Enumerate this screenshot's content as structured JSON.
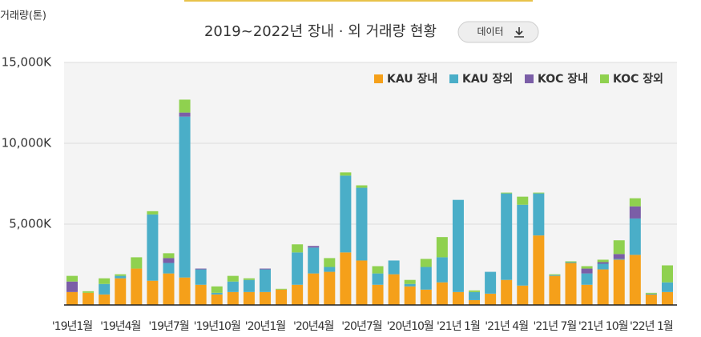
{
  "chart_data": {
    "type": "stacked_bar",
    "title": "2019~2022년 장내 · 외 거래량 현황",
    "y_label": "거래량(톤)",
    "button": "데이터",
    "legend": "top-right",
    "grid": true,
    "ylim": [
      0,
      15000
    ],
    "yticks": [
      {
        "value": 5000,
        "label": "5,000K"
      },
      {
        "value": 10000,
        "label": "10,000K"
      },
      {
        "value": 15000,
        "label": "15,000K"
      }
    ],
    "categories": [
      "'19년1월",
      null,
      null,
      "'19년4월",
      null,
      null,
      "'19년7월",
      null,
      null,
      "'19년10월",
      null,
      null,
      "'20년1월",
      null,
      null,
      "'20년4월",
      null,
      null,
      "'20년7월",
      null,
      null,
      "'20년10월",
      null,
      null,
      "'21년 1월",
      null,
      null,
      "'21년 4월",
      null,
      null,
      "'21년 7월",
      null,
      null,
      "'21년 10월",
      null,
      null,
      "'22년 1월",
      null
    ],
    "series": [
      {
        "name": "KAU 장내",
        "color": "#f5a01a",
        "values": [
          800,
          750,
          650,
          1650,
          2250,
          1500,
          1950,
          1700,
          1250,
          650,
          800,
          800,
          800,
          950,
          1250,
          1950,
          2050,
          3250,
          2750,
          1250,
          1900,
          1150,
          950,
          1400,
          800,
          300,
          700,
          1550,
          1200,
          4300,
          1800,
          2600,
          1250,
          2200,
          2800,
          3100,
          650,
          800
        ]
      },
      {
        "name": "KAU 장외",
        "color": "#4aaec8",
        "values": [
          0,
          0,
          650,
          150,
          0,
          4100,
          650,
          9950,
          950,
          100,
          650,
          750,
          1400,
          0,
          2000,
          1600,
          300,
          4750,
          4500,
          700,
          850,
          150,
          1400,
          1550,
          5700,
          500,
          1350,
          5350,
          5000,
          2600,
          50,
          50,
          700,
          350,
          50,
          2250,
          50,
          600
        ]
      },
      {
        "name": "KOC 장내",
        "color": "#7b5ea7",
        "values": [
          650,
          0,
          0,
          0,
          0,
          0,
          300,
          250,
          50,
          0,
          0,
          0,
          50,
          0,
          0,
          100,
          0,
          0,
          0,
          0,
          0,
          0,
          0,
          0,
          0,
          0,
          0,
          0,
          0,
          0,
          0,
          0,
          300,
          100,
          300,
          750,
          0,
          0
        ]
      },
      {
        "name": "KOC 장외",
        "color": "#8fd14f",
        "values": [
          350,
          100,
          350,
          100,
          700,
          200,
          300,
          800,
          0,
          400,
          350,
          100,
          0,
          50,
          500,
          0,
          550,
          200,
          150,
          450,
          0,
          250,
          500,
          1250,
          0,
          100,
          0,
          50,
          500,
          50,
          50,
          50,
          150,
          150,
          850,
          500,
          50,
          1050
        ]
      }
    ]
  }
}
